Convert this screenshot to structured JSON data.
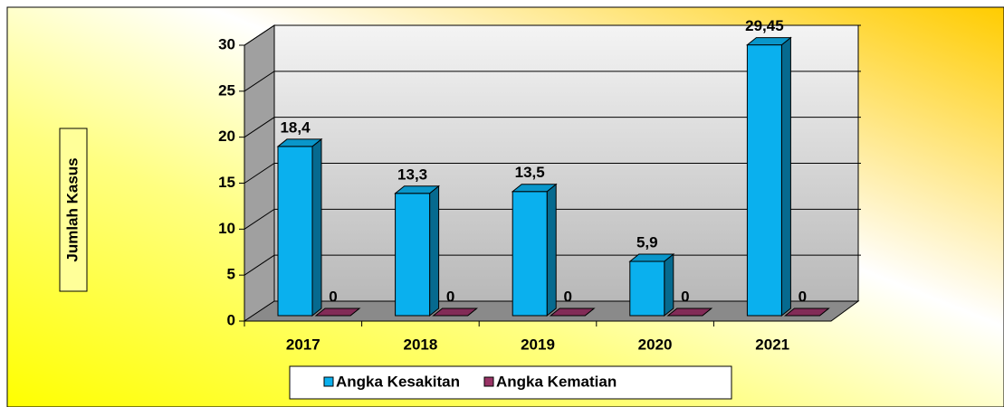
{
  "chart_data": {
    "type": "bar3d",
    "y_label": "Jumlah Kasus",
    "categories": [
      "2017",
      "2018",
      "2019",
      "2020",
      "2021"
    ],
    "series": [
      {
        "name": "Angka Kesakitan",
        "color": "#0ab0ee",
        "values": [
          18.4,
          13.3,
          13.5,
          5.9,
          29.45
        ],
        "value_labels": [
          "18,4",
          "13,3",
          "13,5",
          "5,9",
          "29,45"
        ]
      },
      {
        "name": "Angka Kematian",
        "color": "#993366",
        "values": [
          0,
          0,
          0,
          0,
          0
        ]
      }
    ],
    "ylim": [
      0,
      30
    ],
    "yticks": [
      0,
      5,
      10,
      15,
      20,
      25,
      30
    ],
    "grid": true,
    "legend": "bottom"
  }
}
